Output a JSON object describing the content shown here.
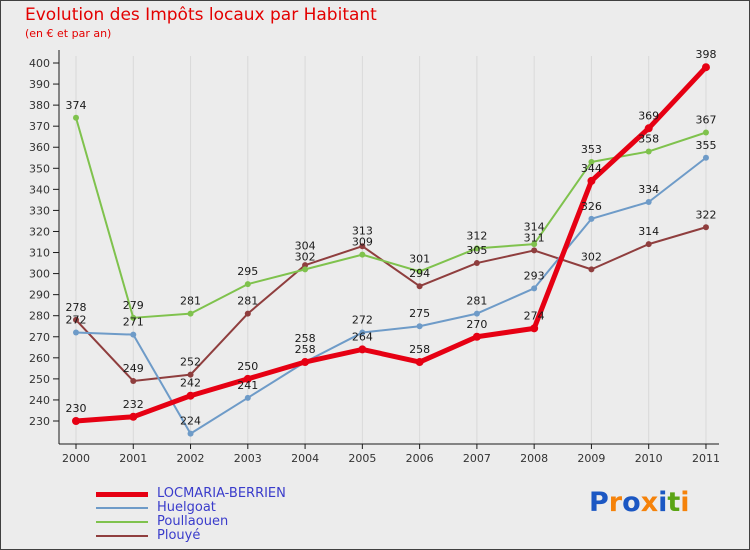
{
  "page": {
    "title": "Evolution des Impôts locaux par Habitant",
    "subtitle": "(en € et par an)",
    "title_color": "#e30000",
    "background_color": "#ececec"
  },
  "chart_data": {
    "type": "line",
    "x": [
      2000,
      2001,
      2002,
      2003,
      2004,
      2005,
      2006,
      2007,
      2008,
      2009,
      2010,
      2011
    ],
    "ylim": [
      230,
      400
    ],
    "ytick_step": 10,
    "grid": "vertical-faint",
    "legend_position": "bottom-left",
    "point_labels": "values-above-points",
    "axis_color": "#1a1a1a",
    "grid_color": "#d9d9d9",
    "tick_label_color": "#333333",
    "point_label_color": "#1a1a1a",
    "series": [
      {
        "name": "LOCMARIA-BERRIEN",
        "color": "#e60013",
        "line_width": 5,
        "values": [
          230,
          232,
          242,
          250,
          258,
          264,
          258,
          270,
          274,
          344,
          369,
          398
        ]
      },
      {
        "name": "Huelgoat",
        "color": "#6e9bc8",
        "line_width": 2,
        "values": [
          272,
          271,
          224,
          241,
          258,
          272,
          275,
          281,
          293,
          326,
          334,
          355
        ]
      },
      {
        "name": "Poullaouen",
        "color": "#7fc24d",
        "line_width": 2,
        "values": [
          374,
          279,
          281,
          295,
          302,
          309,
          301,
          312,
          314,
          353,
          358,
          367
        ]
      },
      {
        "name": "Plouyé",
        "color": "#8f3e3e",
        "line_width": 2,
        "values": [
          278,
          249,
          252,
          281,
          304,
          313,
          294,
          305,
          311,
          302,
          314,
          322
        ]
      }
    ]
  },
  "legend": {
    "text_color": "#3a3ccb",
    "items": [
      {
        "label": "LOCMARIA-BERRIEN",
        "color": "#e60013",
        "thick": true
      },
      {
        "label": "Huelgoat",
        "color": "#6e9bc8",
        "thick": false
      },
      {
        "label": "Poullaouen",
        "color": "#7fc24d",
        "thick": false
      },
      {
        "label": "Plouyé",
        "color": "#8f3e3e",
        "thick": false
      }
    ]
  },
  "logo": {
    "text": "Proxiti",
    "letters": [
      {
        "ch": "P",
        "color": "#1b57c3"
      },
      {
        "ch": "r",
        "color": "#f5820a"
      },
      {
        "ch": "o",
        "color": "#1b57c3"
      },
      {
        "ch": "x",
        "color": "#f5820a"
      },
      {
        "ch": "i",
        "color": "#1b57c3"
      },
      {
        "ch": "t",
        "color": "#5aa414"
      },
      {
        "ch": "i",
        "color": "#f5820a"
      }
    ]
  }
}
